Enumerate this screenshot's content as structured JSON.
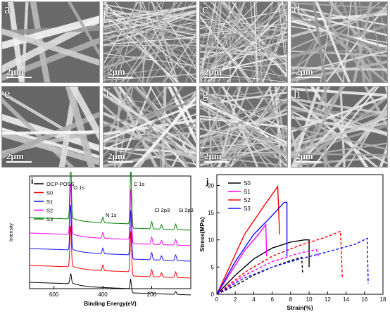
{
  "sem_panels": [
    {
      "label": "a",
      "scale": "2μm",
      "seed": 3,
      "density": 10,
      "width": 7,
      "gray": "#bdbdbd",
      "bg": "#6a6a6a"
    },
    {
      "label": "b",
      "scale": "2μm",
      "seed": 7,
      "density": 70,
      "width": 1.6,
      "gray": "#e0e0e0",
      "bg": "#6f6f6f"
    },
    {
      "label": "c",
      "scale": "2μm",
      "seed": 11,
      "density": 80,
      "width": 1.6,
      "gray": "#dcdcdc",
      "bg": "#707070"
    },
    {
      "label": "d",
      "scale": "2μm",
      "seed": 19,
      "density": 40,
      "width": 2.8,
      "gray": "#d0d0d0",
      "bg": "#7a7a7a"
    },
    {
      "label": "e",
      "scale": "2μm",
      "seed": 23,
      "density": 12,
      "width": 7,
      "gray": "#c4c4c4",
      "bg": "#666666"
    },
    {
      "label": "f",
      "scale": "2μm",
      "seed": 29,
      "density": 45,
      "width": 3,
      "gray": "#d9d9d9",
      "bg": "#6c6c6c"
    },
    {
      "label": "g",
      "scale": "2μm",
      "seed": 31,
      "density": 65,
      "width": 2,
      "gray": "#dddddd",
      "bg": "#6e6e6e"
    },
    {
      "label": "h",
      "scale": "2μm",
      "seed": 37,
      "density": 42,
      "width": 3,
      "gray": "#d4d4d4",
      "bg": "#6a6a6a"
    }
  ],
  "chart_data": [
    {
      "type": "line",
      "panel_label": "i",
      "xlabel": "Binding Energy(eV)",
      "ylabel": "Intensity",
      "xlim": [
        700,
        40
      ],
      "xticks": [
        600,
        400,
        200
      ],
      "legend_position": "top-left",
      "series": [
        {
          "name": "OCP-POSS",
          "color": "#000000"
        },
        {
          "name": "S0",
          "color": "#ff0000"
        },
        {
          "name": "S1",
          "color": "#1010ff"
        },
        {
          "name": "S2",
          "color": "#ff00ff"
        },
        {
          "name": "S3",
          "color": "#008000"
        }
      ],
      "peaks": [
        {
          "label": "O 1s",
          "x": 532
        },
        {
          "label": "N 1s",
          "x": 400
        },
        {
          "label": "C 1s",
          "x": 285
        },
        {
          "label": "Cl 2p3",
          "x": 200
        },
        {
          "label": "Si 2p3",
          "x": 102
        }
      ]
    },
    {
      "type": "line",
      "panel_label": "j",
      "xlabel": "Strain(%)",
      "ylabel": "Stress(MPa)",
      "xlim": [
        0,
        18
      ],
      "ylim": [
        0,
        22
      ],
      "xticks": [
        0,
        2,
        4,
        6,
        8,
        10,
        12,
        14,
        16,
        18
      ],
      "yticks": [
        0,
        5,
        10,
        15,
        20
      ],
      "legend_position": "top-left",
      "series": [
        {
          "name": "S0",
          "color": "#000000",
          "solid": {
            "x": [
              0,
              2,
              4,
              6,
              8,
              9.5,
              10,
              10
            ],
            "y": [
              0,
              3.5,
              6.5,
              8.5,
              9.6,
              10,
              10,
              5
            ]
          },
          "dashed": {
            "x": [
              0,
              2,
              4,
              6,
              8,
              9.2,
              9.3
            ],
            "y": [
              0,
              1.6,
              3.5,
              5.0,
              6.2,
              6.8,
              4
            ]
          }
        },
        {
          "name": "S1",
          "color": "#ff00ff",
          "solid": {
            "x": [
              0,
              1.5,
              3,
              4.5,
              5.3,
              5.4
            ],
            "y": [
              0,
              4,
              8,
              11,
              12.8,
              7
            ]
          },
          "dashed": {
            "x": [
              0,
              3,
              6,
              9,
              10.8,
              11
            ],
            "y": [
              0,
              3.5,
              6,
              7.6,
              8.2,
              7
            ]
          }
        },
        {
          "name": "S2",
          "color": "#ff0000",
          "solid": {
            "x": [
              0,
              1.5,
              3,
              5,
              6.6,
              6.8
            ],
            "y": [
              0,
              5.5,
              11,
              16,
              19.8,
              11
            ]
          },
          "dashed": {
            "x": [
              0,
              3,
              6,
              9,
              12,
              13.4,
              13.6
            ],
            "y": [
              0,
              4,
              7,
              9,
              10.6,
              11.6,
              3
            ]
          }
        },
        {
          "name": "S3",
          "color": "#1010ff",
          "solid": {
            "x": [
              0,
              2,
              4,
              6,
              7.3,
              7.6,
              7.6
            ],
            "y": [
              0,
              6,
              11,
              14.5,
              16.9,
              16.9,
              7
            ]
          },
          "dashed": {
            "x": [
              0,
              3,
              6,
              9,
              12,
              15,
              16.3,
              16.4
            ],
            "y": [
              0,
              3,
              5,
              6.5,
              7.8,
              9.2,
              10.3,
              2
            ]
          }
        }
      ]
    }
  ]
}
